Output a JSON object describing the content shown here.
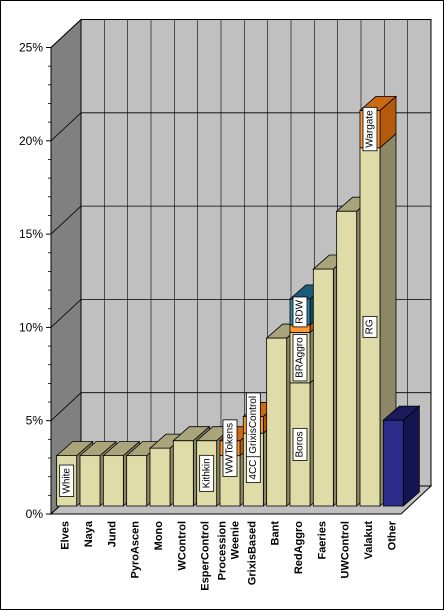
{
  "colors": {
    "back_wall": "#c0c0c0",
    "side_wall": "#808080",
    "floor": "#c0c0c0",
    "grid": "#000000",
    "main_front": "#e0dca8",
    "main_top": "#a9a47a",
    "main_side": "#8c8866",
    "orange_front": "#ff9933",
    "orange_top": "#cc6a12",
    "orange_side": "#b35a0c",
    "teal_front": "#2d87a8",
    "teal_top": "#1a5c78",
    "teal_side": "#144a60",
    "navy_front": "#2b2b8c",
    "navy_top": "#1a1a5c",
    "navy_side": "#141450",
    "label_bg": "#ffffff"
  },
  "chart_data": {
    "type": "bar",
    "stacked": true,
    "three_d": true,
    "ylim": [
      0,
      25
    ],
    "ytick_labels": [
      "0%",
      "5%",
      "10%",
      "15%",
      "20%",
      "25%"
    ],
    "ytick_values": [
      0,
      5,
      10,
      15,
      20,
      25
    ],
    "grid": true,
    "title": "",
    "xlabel": "",
    "ylabel": "",
    "categories": [
      "Elves",
      "Naya",
      "Jund",
      "PyroAscen",
      "Mono",
      "WControl",
      "EsperControl",
      "Procession\nWeenie",
      "GrixisBased",
      "Bant",
      "RedAggro",
      "Faeries",
      "UWControl",
      "Valakut",
      "Other"
    ],
    "bars": [
      {
        "category": "Elves",
        "segments": [
          {
            "value": 2.7,
            "color": "main",
            "label": "White"
          }
        ]
      },
      {
        "category": "Naya",
        "segments": [
          {
            "value": 2.7,
            "color": "main",
            "label": ""
          }
        ]
      },
      {
        "category": "Jund",
        "segments": [
          {
            "value": 2.7,
            "color": "main",
            "label": ""
          }
        ]
      },
      {
        "category": "PyroAscen",
        "segments": [
          {
            "value": 2.7,
            "color": "main",
            "label": ""
          }
        ]
      },
      {
        "category": "Mono",
        "segments": [
          {
            "value": 3.1,
            "color": "main",
            "label": ""
          }
        ]
      },
      {
        "category": "WControl",
        "segments": [
          {
            "value": 3.5,
            "color": "main",
            "label": ""
          }
        ]
      },
      {
        "category": "EsperControl",
        "segments": [
          {
            "value": 3.5,
            "color": "main",
            "label": "Kithkin"
          }
        ]
      },
      {
        "category": "Procession\nWeenie",
        "segments": [
          {
            "value": 2.7,
            "color": "main",
            "label": ""
          },
          {
            "value": 0.8,
            "color": "orange",
            "label": "WWTokens"
          }
        ]
      },
      {
        "category": "GrixisBased",
        "segments": [
          {
            "value": 3.9,
            "color": "main",
            "label": "4CC"
          },
          {
            "value": 0.9,
            "color": "orange",
            "label": "GrixisControl"
          }
        ]
      },
      {
        "category": "Bant",
        "segments": [
          {
            "value": 9.0,
            "color": "main",
            "label": ""
          }
        ]
      },
      {
        "category": "RedAggro",
        "segments": [
          {
            "value": 6.6,
            "color": "main",
            "label": "Boros"
          },
          {
            "value": 2.7,
            "color": "main",
            "label": "BRAggro"
          },
          {
            "value": 0.4,
            "color": "orange",
            "label": ""
          },
          {
            "value": 1.4,
            "color": "teal",
            "label": "RDW"
          }
        ]
      },
      {
        "category": "Faeries",
        "segments": [
          {
            "value": 12.7,
            "color": "main",
            "label": ""
          }
        ]
      },
      {
        "category": "UWControl",
        "segments": [
          {
            "value": 15.8,
            "color": "main",
            "label": ""
          }
        ]
      },
      {
        "category": "Valakut",
        "segments": [
          {
            "value": 19.2,
            "color": "main",
            "label": "RG"
          },
          {
            "value": 2.0,
            "color": "orange",
            "label": "Wargate"
          }
        ]
      },
      {
        "category": "Other",
        "segments": [
          {
            "value": 4.6,
            "color": "navy",
            "label": ""
          }
        ]
      }
    ]
  }
}
